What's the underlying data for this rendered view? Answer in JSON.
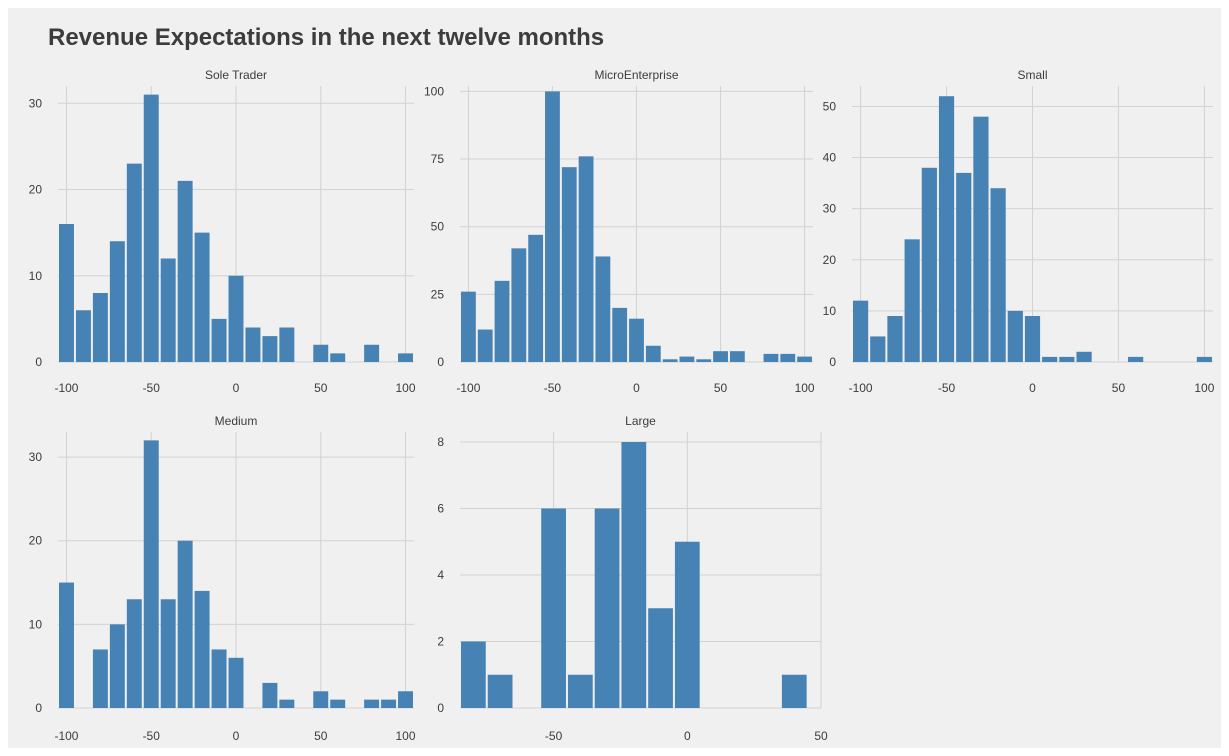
{
  "title": "Revenue Expectations in the next twelve months",
  "colors": {
    "bar": "#4682b4",
    "background": "#f0f0f0",
    "grid": "#d2d2d2",
    "text": "#3c3c3c"
  },
  "chart_data": [
    {
      "type": "bar",
      "facet": "Sole Trader",
      "x": [
        -100,
        -90,
        -80,
        -70,
        -60,
        -50,
        -40,
        -30,
        -20,
        -10,
        0,
        10,
        20,
        30,
        40,
        50,
        60,
        70,
        80,
        90,
        100
      ],
      "values": [
        16,
        6,
        8,
        14,
        23,
        31,
        12,
        21,
        15,
        5,
        10,
        4,
        3,
        4,
        0,
        2,
        1,
        0,
        2,
        0,
        1
      ],
      "x_ticks": [
        -100,
        -50,
        0,
        50,
        100
      ],
      "y_ticks": [
        0,
        10,
        20,
        30
      ],
      "xlim": [
        -105,
        105
      ],
      "ylim": [
        0,
        32
      ]
    },
    {
      "type": "bar",
      "facet": "MicroEnterprise",
      "x": [
        -100,
        -90,
        -80,
        -70,
        -60,
        -50,
        -40,
        -30,
        -20,
        -10,
        0,
        10,
        20,
        30,
        40,
        50,
        60,
        70,
        80,
        90,
        100
      ],
      "values": [
        26,
        12,
        30,
        42,
        47,
        100,
        72,
        76,
        39,
        20,
        16,
        6,
        1,
        2,
        1,
        4,
        4,
        0,
        3,
        3,
        2
      ],
      "x_ticks": [
        -100,
        -50,
        0,
        50,
        100
      ],
      "y_ticks": [
        0,
        25,
        50,
        75,
        100
      ],
      "xlim": [
        -105,
        105
      ],
      "ylim": [
        0,
        102
      ]
    },
    {
      "type": "bar",
      "facet": "Small",
      "x": [
        -100,
        -90,
        -80,
        -70,
        -60,
        -50,
        -40,
        -30,
        -20,
        -10,
        0,
        10,
        20,
        30,
        40,
        50,
        60,
        70,
        80,
        90,
        100
      ],
      "values": [
        12,
        5,
        9,
        24,
        38,
        52,
        37,
        48,
        34,
        10,
        9,
        1,
        1,
        2,
        0,
        0,
        1,
        0,
        0,
        0,
        1
      ],
      "x_ticks": [
        -100,
        -50,
        0,
        50,
        100
      ],
      "y_ticks": [
        0,
        10,
        20,
        30,
        40,
        50
      ],
      "xlim": [
        -105,
        105
      ],
      "ylim": [
        0,
        54
      ]
    },
    {
      "type": "bar",
      "facet": "Medium",
      "x": [
        -100,
        -90,
        -80,
        -70,
        -60,
        -50,
        -40,
        -30,
        -20,
        -10,
        0,
        10,
        20,
        30,
        40,
        50,
        60,
        70,
        80,
        90,
        100
      ],
      "values": [
        15,
        0,
        7,
        10,
        13,
        32,
        13,
        20,
        14,
        7,
        6,
        0,
        3,
        1,
        0,
        2,
        1,
        0,
        1,
        1,
        2
      ],
      "x_ticks": [
        -100,
        -50,
        0,
        50,
        100
      ],
      "y_ticks": [
        0,
        10,
        20,
        30
      ],
      "xlim": [
        -105,
        105
      ],
      "ylim": [
        0,
        33
      ]
    },
    {
      "type": "bar",
      "facet": "Large",
      "x": [
        -80,
        -70,
        -60,
        -50,
        -40,
        -30,
        -20,
        -10,
        0,
        10,
        20,
        30,
        40
      ],
      "values": [
        2,
        1,
        0,
        6,
        1,
        6,
        8,
        3,
        5,
        0,
        0,
        0,
        1
      ],
      "x_ticks": [
        -50,
        0,
        50
      ],
      "y_ticks": [
        0,
        2,
        4,
        6,
        8
      ],
      "xlim": [
        -85,
        50
      ],
      "ylim": [
        0,
        8.3
      ]
    }
  ]
}
